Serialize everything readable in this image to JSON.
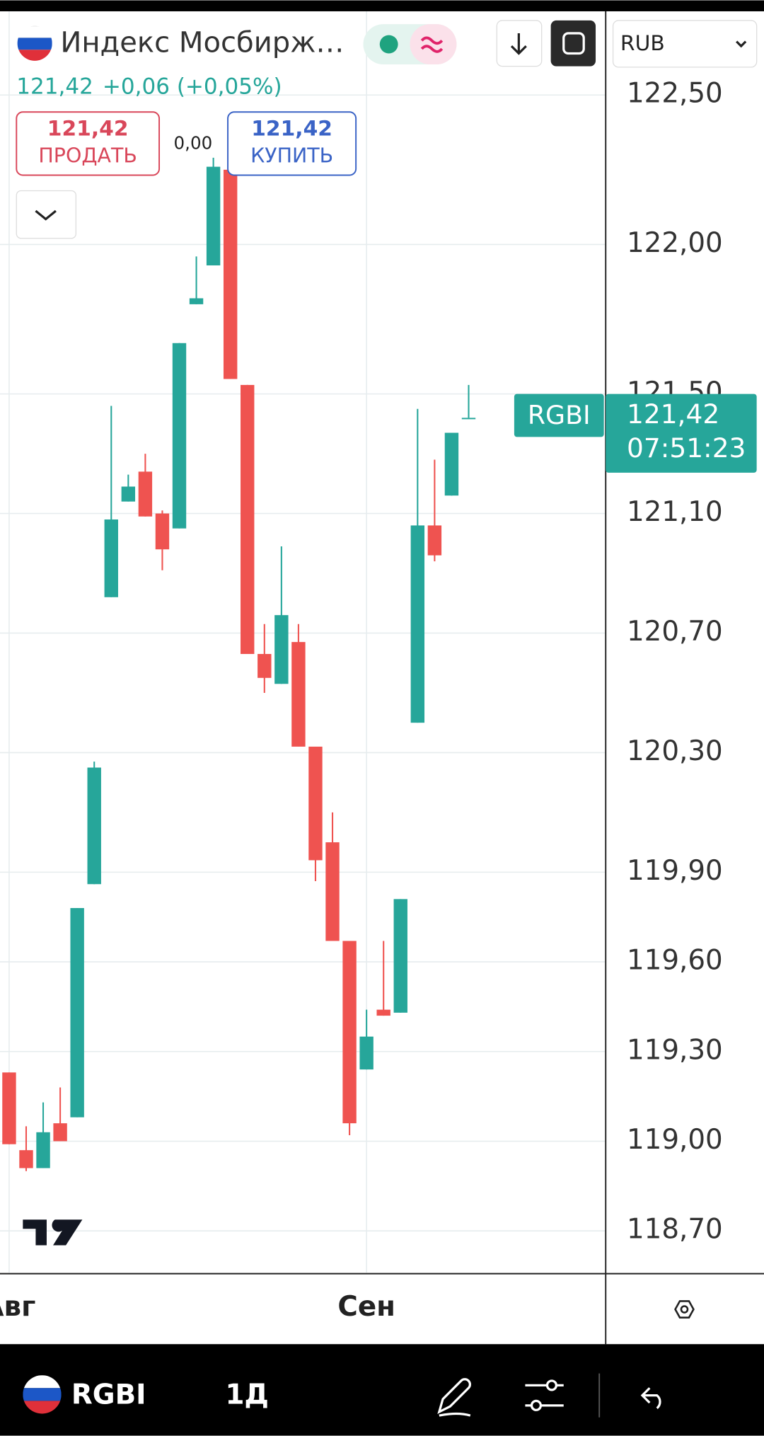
{
  "header": {
    "title": "Индекс Мосбирж…",
    "price": "121,42",
    "change": "+0,06 (+0,05%)",
    "sell_price": "121,42",
    "sell_label": "ПРОДАТЬ",
    "spread": "0,00",
    "buy_price": "121,42",
    "buy_label": "КУПИТЬ",
    "currency": "RUB"
  },
  "price_tag": {
    "symbol": "RGBI",
    "price": "121,42",
    "countdown": "07:51:23"
  },
  "bottom_bar": {
    "symbol": "RGBI",
    "interval": "1Д"
  },
  "chart_data": {
    "type": "candlestick",
    "categories": [
      null,
      null,
      null,
      null,
      null,
      null,
      null,
      null,
      null,
      null,
      null,
      null,
      null,
      null,
      null,
      null,
      null,
      null,
      null,
      null,
      null,
      null,
      null,
      null,
      null,
      null,
      null,
      null
    ],
    "open": [
      119.23,
      118.97,
      118.91,
      119.06,
      119.08,
      119.86,
      120.82,
      121.14,
      121.24,
      121.1,
      121.05,
      121.8,
      121.93,
      122.25,
      121.53,
      120.63,
      120.53,
      120.67,
      120.32,
      120.0,
      119.67,
      119.24,
      119.44,
      119.43,
      120.4,
      121.06,
      121.16,
      121.42
    ],
    "high": [
      119.23,
      119.05,
      119.13,
      119.18,
      119.78,
      120.27,
      121.46,
      121.23,
      121.3,
      121.11,
      121.67,
      121.96,
      122.29,
      122.25,
      121.53,
      120.73,
      120.99,
      120.73,
      120.32,
      120.1,
      119.67,
      119.44,
      119.67,
      119.81,
      121.45,
      121.28,
      121.37,
      121.53
    ],
    "low": [
      118.99,
      118.9,
      118.91,
      119.0,
      119.08,
      119.86,
      120.82,
      121.14,
      121.09,
      120.91,
      121.05,
      121.8,
      121.93,
      121.55,
      120.63,
      120.5,
      120.53,
      120.32,
      119.87,
      119.67,
      119.02,
      119.24,
      119.42,
      119.43,
      120.4,
      120.94,
      121.16,
      121.42
    ],
    "close": [
      118.99,
      118.91,
      119.03,
      119.0,
      119.78,
      120.25,
      121.08,
      121.19,
      121.09,
      120.98,
      121.67,
      121.82,
      122.26,
      121.55,
      120.63,
      120.55,
      120.76,
      120.32,
      119.94,
      119.67,
      119.06,
      119.35,
      119.42,
      119.81,
      121.06,
      120.96,
      121.37,
      121.42
    ],
    "up_color": "#26a69a",
    "down_color": "#ef5350",
    "ylim": [
      118.56,
      122.78
    ],
    "yticks": [
      {
        "value": 122.5,
        "label": "122,50"
      },
      {
        "value": 122.0,
        "label": "122,00"
      },
      {
        "value": 121.5,
        "label": "121,50"
      },
      {
        "value": 121.1,
        "label": "121,10"
      },
      {
        "value": 120.7,
        "label": "120,70"
      },
      {
        "value": 120.3,
        "label": "120,30"
      },
      {
        "value": 119.9,
        "label": "119,90"
      },
      {
        "value": 119.6,
        "label": "119,60"
      },
      {
        "value": 119.3,
        "label": "119,30"
      },
      {
        "value": 119.0,
        "label": "119,00"
      },
      {
        "value": 118.7,
        "label": "118,70"
      }
    ],
    "xticks": [
      {
        "value": 0,
        "label": "Авг"
      },
      {
        "value": 21,
        "label": "Сен"
      }
    ],
    "grid": true
  }
}
